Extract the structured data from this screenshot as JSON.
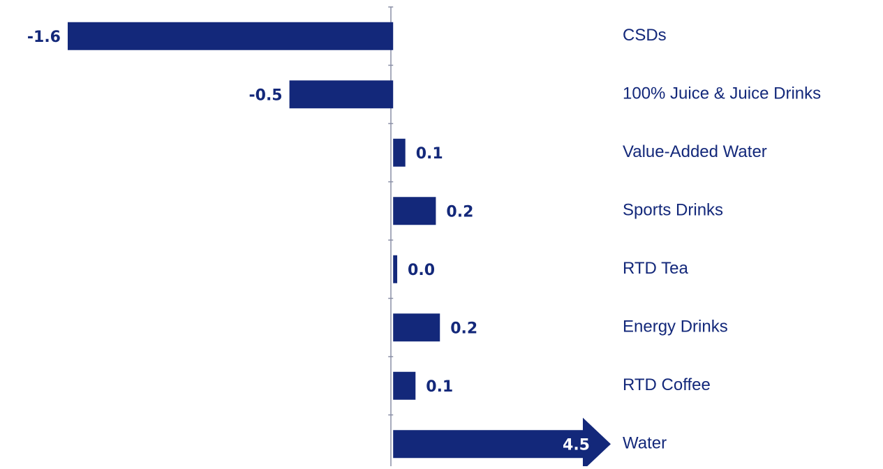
{
  "chart_data": {
    "type": "bar",
    "orientation": "horizontal",
    "categories": [
      "CSDs",
      "100% Juice & Juice Drinks",
      "Value-Added Water",
      "Sports Drinks",
      "RTD Tea",
      "Energy Drinks",
      "RTD Coffee",
      "Water"
    ],
    "values": [
      -1.6,
      -0.51,
      0.06,
      0.21,
      0.02,
      0.23,
      0.11,
      4.5
    ],
    "value_labels": [
      "-1.6",
      "-0.5",
      "0.1",
      "0.2",
      "0.0",
      "0.2",
      "0.1",
      "4.5"
    ],
    "color": "#13287a",
    "xlim": [
      -1.6,
      1.07
    ]
  }
}
